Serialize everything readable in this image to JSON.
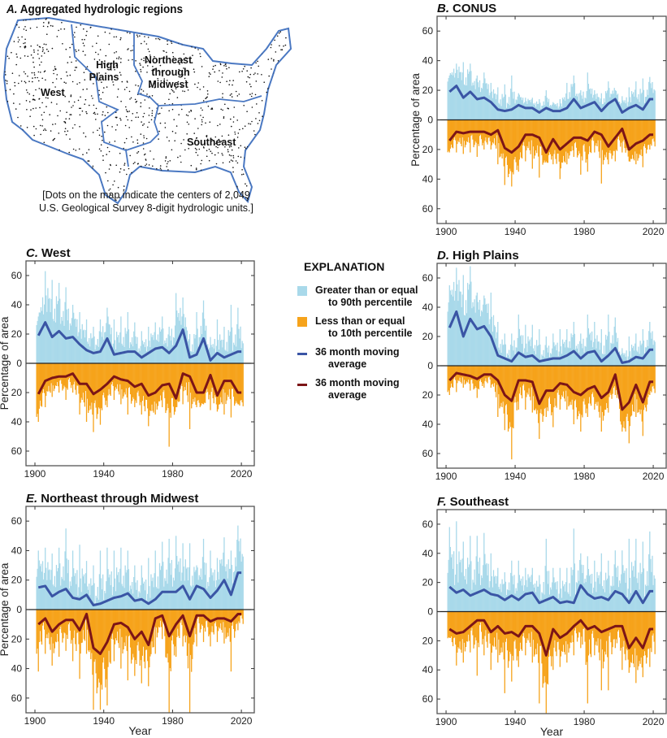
{
  "colors": {
    "upper_bar": "#a9d9ea",
    "lower_bar": "#f6a31b",
    "upper_ma": "#3a55a5",
    "lower_ma": "#7c1517",
    "map_boundary": "#4a78c2"
  },
  "panel_a": {
    "letter": "A.",
    "title": "Aggregated hydrologic regions",
    "regions": [
      "West",
      "High",
      "Plains",
      "Northeast",
      "through",
      "Midwest",
      "Southeast"
    ],
    "caption_line1": "[Dots on the map indicate the centers of 2,049",
    "caption_line2": "U.S. Geological Survey 8-digit hydrologic units.]"
  },
  "legend": {
    "title": "EXPLANATION",
    "items": [
      {
        "line1": "Greater than or equal",
        "line2": "to 90th percentile",
        "kind": "swatch",
        "color": "#a9d9ea"
      },
      {
        "line1": "Less than or equal",
        "line2": "to 10th percentile",
        "kind": "swatch",
        "color": "#f6a31b"
      },
      {
        "line1": "36 month moving",
        "line2": "average",
        "kind": "line",
        "color": "#3a55a5"
      },
      {
        "line1": "36 month moving",
        "line2": "average",
        "kind": "line",
        "color": "#7c1517"
      }
    ]
  },
  "chart_data": [
    {
      "panel": "B",
      "letter": "B.",
      "title": "CONUS",
      "type": "area",
      "ylabel": "Percentage of area",
      "xlabel": "",
      "xlim": [
        1895,
        2027
      ],
      "ylim_upper": [
        0,
        70
      ],
      "ylim_lower": [
        0,
        70
      ],
      "x_ticks": [
        "1900",
        "1940",
        "1980",
        "2020"
      ],
      "y_ticks": [
        "60",
        "40",
        "20",
        "0",
        "20",
        "40",
        "60"
      ],
      "years": [
        1902,
        1906,
        1910,
        1914,
        1918,
        1922,
        1926,
        1930,
        1934,
        1938,
        1942,
        1946,
        1950,
        1954,
        1958,
        1962,
        1966,
        1970,
        1974,
        1978,
        1982,
        1986,
        1990,
        1994,
        1998,
        2002,
        2006,
        2010,
        2014,
        2018
      ],
      "upper_ma": [
        19,
        23,
        15,
        19,
        14,
        15,
        12,
        7,
        6,
        7,
        10,
        8,
        8,
        5,
        8,
        6,
        6,
        8,
        14,
        8,
        10,
        12,
        6,
        11,
        14,
        5,
        8,
        10,
        7,
        14
      ],
      "upper_peak": [
        30,
        38,
        39,
        38,
        30,
        32,
        25,
        22,
        24,
        30,
        18,
        15,
        15,
        14,
        20,
        12,
        14,
        25,
        30,
        20,
        32,
        20,
        18,
        26,
        20,
        16,
        22,
        26,
        28,
        29
      ],
      "lower_ma": [
        14,
        8,
        9,
        8,
        8,
        8,
        10,
        7,
        19,
        22,
        18,
        10,
        10,
        12,
        22,
        13,
        20,
        16,
        12,
        12,
        14,
        8,
        10,
        18,
        12,
        6,
        20,
        16,
        14,
        10
      ],
      "lower_peak": [
        22,
        22,
        23,
        22,
        25,
        20,
        20,
        30,
        44,
        45,
        35,
        28,
        33,
        39,
        28,
        30,
        40,
        30,
        25,
        37,
        35,
        22,
        43,
        30,
        28,
        22,
        28,
        30,
        32,
        20
      ]
    },
    {
      "panel": "C",
      "letter": "C.",
      "title": "West",
      "type": "area",
      "ylabel": "Percentage of area",
      "xlabel": "",
      "xlim": [
        1895,
        2027
      ],
      "ylim_upper": [
        0,
        70
      ],
      "ylim_lower": [
        0,
        70
      ],
      "x_ticks": [
        "1900",
        "1940",
        "1980",
        "2020"
      ],
      "y_ticks": [
        "60",
        "40",
        "20",
        "0",
        "20",
        "40",
        "60"
      ],
      "years": [
        1902,
        1906,
        1910,
        1914,
        1918,
        1922,
        1926,
        1930,
        1934,
        1938,
        1942,
        1946,
        1950,
        1954,
        1958,
        1962,
        1966,
        1970,
        1974,
        1978,
        1982,
        1986,
        1990,
        1994,
        1998,
        2002,
        2006,
        2010,
        2014,
        2018
      ],
      "upper_ma": [
        19,
        28,
        18,
        22,
        17,
        18,
        13,
        9,
        7,
        8,
        17,
        6,
        7,
        8,
        8,
        4,
        7,
        10,
        11,
        7,
        12,
        23,
        4,
        6,
        17,
        2,
        7,
        4,
        6,
        8
      ],
      "upper_peak": [
        32,
        63,
        57,
        55,
        52,
        40,
        35,
        30,
        25,
        30,
        38,
        30,
        32,
        35,
        28,
        22,
        25,
        28,
        32,
        25,
        48,
        45,
        20,
        35,
        43,
        18,
        30,
        25,
        40,
        38
      ],
      "lower_ma": [
        21,
        12,
        10,
        9,
        9,
        7,
        14,
        14,
        21,
        18,
        14,
        9,
        11,
        12,
        16,
        14,
        22,
        20,
        15,
        14,
        24,
        7,
        9,
        20,
        20,
        8,
        22,
        12,
        12,
        20
      ],
      "lower_peak": [
        40,
        30,
        23,
        20,
        25,
        20,
        35,
        40,
        47,
        42,
        30,
        25,
        28,
        35,
        30,
        35,
        43,
        35,
        30,
        57,
        30,
        28,
        45,
        30,
        28,
        32,
        33,
        35,
        37,
        28
      ]
    },
    {
      "panel": "D",
      "letter": "D.",
      "title": "High Plains",
      "type": "area",
      "ylabel": "",
      "xlabel": "",
      "xlim": [
        1895,
        2027
      ],
      "ylim_upper": [
        0,
        70
      ],
      "ylim_lower": [
        0,
        70
      ],
      "x_ticks": [
        "1900",
        "1940",
        "1980",
        "2020"
      ],
      "y_ticks": [
        "60",
        "40",
        "20",
        "0",
        "20",
        "40",
        "60"
      ],
      "years": [
        1902,
        1906,
        1910,
        1914,
        1918,
        1922,
        1926,
        1930,
        1934,
        1938,
        1942,
        1946,
        1950,
        1954,
        1958,
        1962,
        1966,
        1970,
        1974,
        1978,
        1982,
        1986,
        1990,
        1994,
        1998,
        2002,
        2006,
        2010,
        2014,
        2018
      ],
      "upper_ma": [
        26,
        37,
        20,
        32,
        25,
        27,
        20,
        7,
        5,
        3,
        9,
        6,
        7,
        3,
        4,
        5,
        5,
        7,
        10,
        5,
        9,
        10,
        3,
        7,
        12,
        2,
        3,
        6,
        5,
        11
      ],
      "upper_peak": [
        55,
        67,
        62,
        68,
        50,
        48,
        50,
        30,
        22,
        22,
        35,
        28,
        28,
        25,
        20,
        22,
        25,
        25,
        30,
        22,
        35,
        30,
        25,
        35,
        33,
        12,
        20,
        22,
        25,
        30
      ],
      "lower_ma": [
        10,
        5,
        6,
        7,
        9,
        6,
        6,
        10,
        20,
        24,
        10,
        10,
        11,
        26,
        17,
        17,
        12,
        13,
        18,
        20,
        16,
        14,
        22,
        18,
        6,
        30,
        25,
        13,
        25,
        11
      ],
      "lower_peak": [
        20,
        18,
        15,
        17,
        22,
        15,
        15,
        35,
        44,
        64,
        30,
        30,
        32,
        50,
        35,
        42,
        30,
        30,
        40,
        45,
        35,
        30,
        45,
        32,
        20,
        45,
        53,
        35,
        48,
        20
      ]
    },
    {
      "panel": "E",
      "letter": "E.",
      "title": "Northeast through Midwest",
      "type": "area",
      "ylabel": "Percentage of area",
      "xlabel": "Year",
      "xlim": [
        1895,
        2027
      ],
      "ylim_upper": [
        0,
        70
      ],
      "ylim_lower": [
        0,
        70
      ],
      "x_ticks": [
        "1900",
        "1940",
        "1980",
        "2020"
      ],
      "y_ticks": [
        "60",
        "40",
        "20",
        "0",
        "20",
        "40",
        "60"
      ],
      "years": [
        1902,
        1906,
        1910,
        1914,
        1918,
        1922,
        1926,
        1930,
        1934,
        1938,
        1942,
        1946,
        1950,
        1954,
        1958,
        1962,
        1966,
        1970,
        1974,
        1978,
        1982,
        1986,
        1990,
        1994,
        1998,
        2002,
        2006,
        2010,
        2014,
        2018
      ],
      "upper_ma": [
        15,
        16,
        9,
        12,
        14,
        8,
        7,
        10,
        3,
        4,
        6,
        8,
        9,
        11,
        6,
        7,
        4,
        7,
        12,
        12,
        12,
        16,
        7,
        16,
        14,
        8,
        13,
        20,
        10,
        25
      ],
      "upper_peak": [
        40,
        42,
        38,
        42,
        55,
        40,
        44,
        33,
        30,
        40,
        42,
        40,
        42,
        40,
        30,
        30,
        35,
        40,
        46,
        48,
        50,
        45,
        45,
        30,
        48,
        40,
        35,
        49,
        40,
        57
      ],
      "lower_ma": [
        10,
        6,
        15,
        10,
        7,
        7,
        14,
        3,
        26,
        30,
        22,
        10,
        9,
        12,
        20,
        15,
        24,
        6,
        4,
        18,
        10,
        4,
        18,
        4,
        4,
        8,
        6,
        6,
        8,
        3
      ],
      "lower_peak": [
        42,
        30,
        38,
        32,
        28,
        35,
        47,
        30,
        68,
        68,
        65,
        35,
        40,
        48,
        45,
        50,
        52,
        30,
        20,
        70,
        32,
        25,
        70,
        25,
        22,
        25,
        22,
        23,
        42,
        14
      ]
    },
    {
      "panel": "F",
      "letter": "F.",
      "title": "Southeast",
      "type": "area",
      "ylabel": "",
      "xlabel": "Year",
      "xlim": [
        1895,
        2027
      ],
      "ylim_upper": [
        0,
        70
      ],
      "ylim_lower": [
        0,
        70
      ],
      "x_ticks": [
        "1900",
        "1940",
        "1980",
        "2020"
      ],
      "y_ticks": [
        "60",
        "40",
        "20",
        "0",
        "20",
        "40",
        "60"
      ],
      "years": [
        1902,
        1906,
        1910,
        1914,
        1918,
        1922,
        1926,
        1930,
        1934,
        1938,
        1942,
        1946,
        1950,
        1954,
        1958,
        1962,
        1966,
        1970,
        1974,
        1978,
        1982,
        1986,
        1990,
        1994,
        1998,
        2002,
        2006,
        2010,
        2014,
        2018
      ],
      "upper_ma": [
        17,
        13,
        15,
        11,
        13,
        15,
        12,
        11,
        8,
        11,
        8,
        12,
        13,
        6,
        8,
        10,
        6,
        7,
        6,
        18,
        12,
        9,
        10,
        8,
        14,
        12,
        6,
        14,
        6,
        14
      ],
      "upper_peak": [
        58,
        62,
        48,
        52,
        52,
        54,
        40,
        30,
        27,
        35,
        35,
        30,
        30,
        25,
        50,
        30,
        30,
        30,
        57,
        40,
        38,
        35,
        40,
        35,
        42,
        42,
        50,
        50,
        48,
        55
      ],
      "lower_ma": [
        12,
        15,
        14,
        10,
        6,
        6,
        14,
        10,
        15,
        14,
        17,
        10,
        10,
        15,
        30,
        12,
        18,
        15,
        10,
        6,
        12,
        10,
        14,
        12,
        10,
        10,
        25,
        18,
        25,
        12
      ],
      "lower_peak": [
        18,
        37,
        35,
        28,
        44,
        30,
        40,
        35,
        56,
        48,
        38,
        30,
        35,
        63,
        70,
        40,
        38,
        35,
        30,
        25,
        63,
        30,
        54,
        54,
        25,
        40,
        42,
        49,
        45,
        38
      ]
    }
  ]
}
